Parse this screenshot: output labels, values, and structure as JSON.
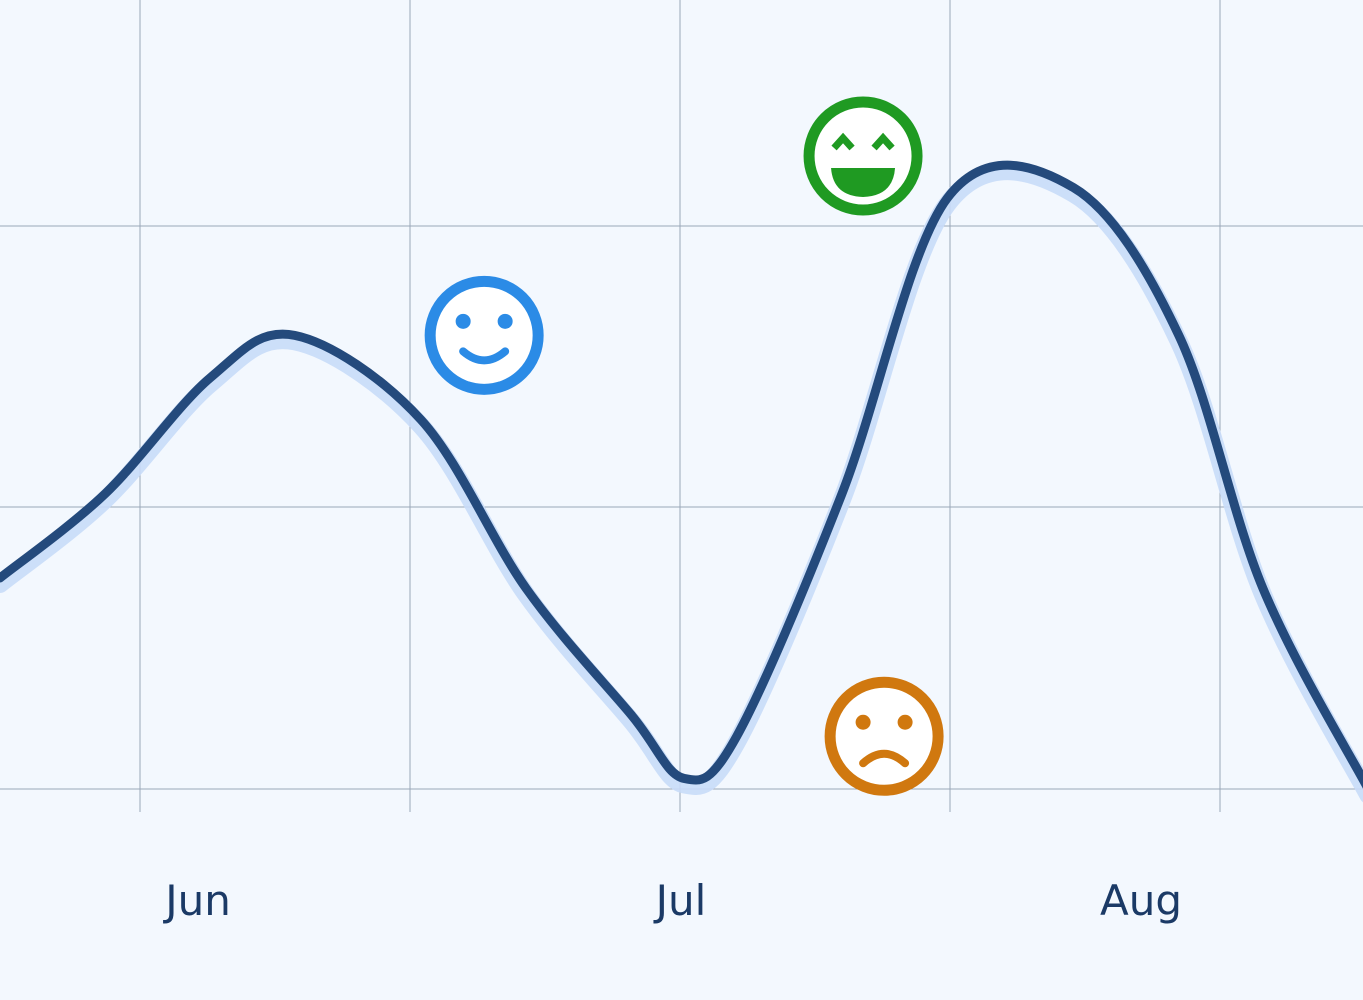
{
  "chart_data": {
    "type": "line",
    "title": "",
    "xlabel": "",
    "ylabel": "",
    "x_ticks": [
      "Jun",
      "Jul",
      "Aug"
    ],
    "ylim": [
      0,
      4
    ],
    "grid": true,
    "series": [
      {
        "color": "#244a7c",
        "points": [
          {
            "x": 0.0,
            "y": 1.0
          },
          {
            "x": 0.5,
            "y": 1.4
          },
          {
            "x": 1.0,
            "y": 1.95
          },
          {
            "x": 1.4,
            "y": 2.15
          },
          {
            "x": 2.0,
            "y": 1.75
          },
          {
            "x": 2.5,
            "y": 0.95
          },
          {
            "x": 3.0,
            "y": 0.35
          },
          {
            "x": 3.25,
            "y": 0.05
          },
          {
            "x": 3.5,
            "y": 0.25
          },
          {
            "x": 4.0,
            "y": 1.4
          },
          {
            "x": 4.5,
            "y": 2.8
          },
          {
            "x": 5.1,
            "y": 2.85
          },
          {
            "x": 5.6,
            "y": 2.15
          },
          {
            "x": 6.0,
            "y": 0.95
          },
          {
            "x": 6.5,
            "y": 0.0
          }
        ]
      }
    ],
    "annotations": [
      {
        "icon": "smile-face-icon",
        "x": 2.3,
        "y": 2.15,
        "color": "#2b8be6"
      },
      {
        "icon": "grin-face-icon",
        "x": 4.1,
        "y": 3.0,
        "color": "#1f9a22"
      },
      {
        "icon": "sad-face-icon",
        "x": 4.2,
        "y": 0.25,
        "color": "#d0780f"
      }
    ]
  }
}
